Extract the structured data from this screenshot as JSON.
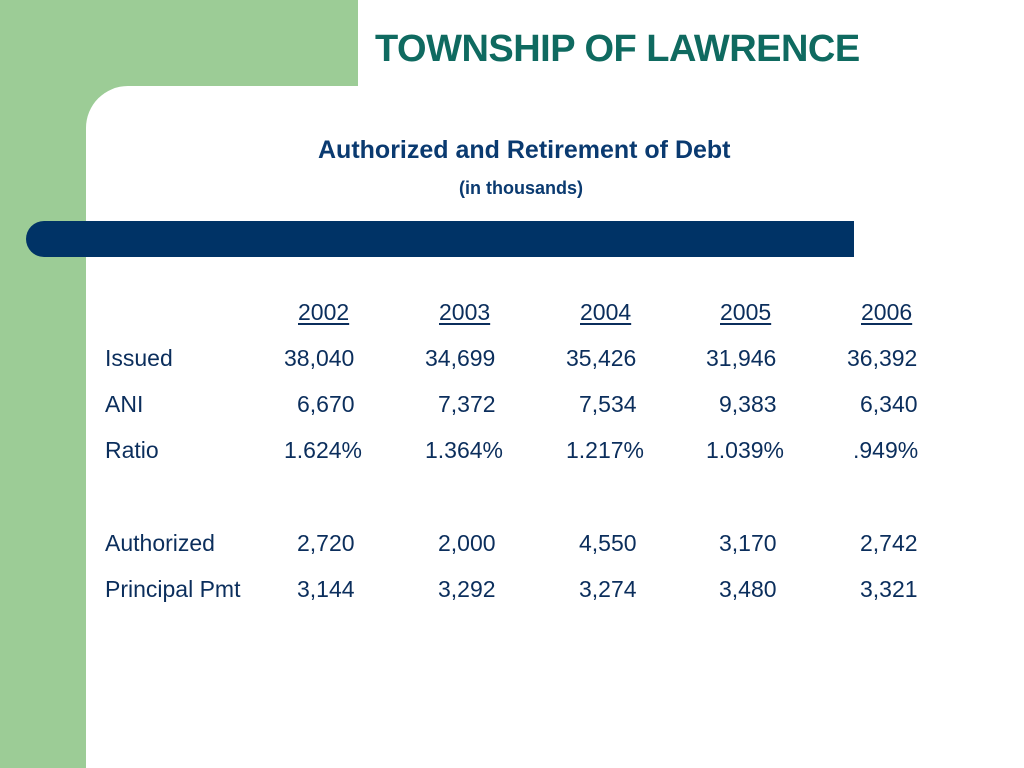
{
  "title": "TOWNSHIP OF LAWRENCE",
  "subtitle": "Authorized and Retirement of Debt",
  "units_note": "(in thousands)",
  "table": {
    "years": [
      "2002",
      "2003",
      "2004",
      "2005",
      "2006"
    ],
    "rows": [
      {
        "label": "Issued",
        "values": [
          "38,040",
          "34,699",
          "35,426",
          "31,946",
          "36,392"
        ]
      },
      {
        "label": "ANI",
        "values": [
          "6,670",
          "7,372",
          "7,534",
          "9,383",
          "6,340"
        ]
      },
      {
        "label": "Ratio",
        "values": [
          "1.624%",
          "1.364%",
          "1.217%",
          "1.039%",
          ".949%"
        ]
      },
      {
        "label": "Authorized",
        "values": [
          "2,720",
          "2,000",
          "4,550",
          "3,170",
          "2,742"
        ]
      },
      {
        "label": "Principal Pmt",
        "values": [
          "3,144",
          "3,292",
          "3,274",
          "3,480",
          "3,321"
        ]
      }
    ]
  },
  "colors": {
    "title": "#0f6a60",
    "subtitle": "#0a3a70",
    "text": "#0b2e5c",
    "green_background": "#9ccc96",
    "bar": "#003366"
  }
}
